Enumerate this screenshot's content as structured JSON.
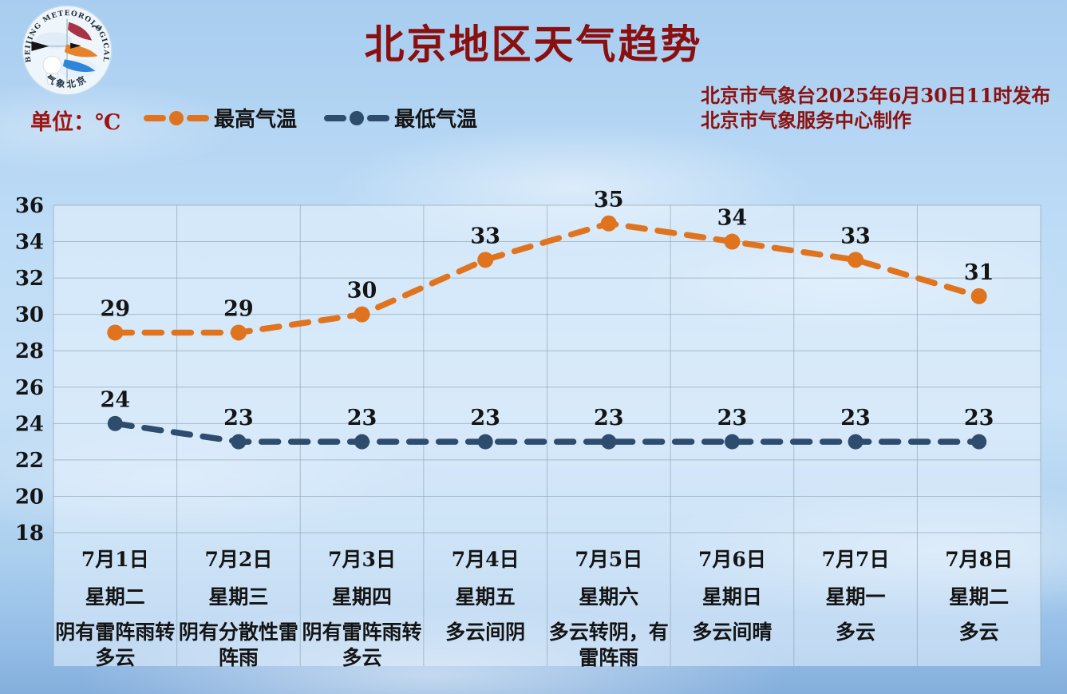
{
  "header": {
    "title": "北京地区天气趋势",
    "unit_label": "单位：℃",
    "publisher_line1": "北京市气象台2025年6月30日11时发布",
    "publisher_line2": "北京市气象服务中心制作",
    "logo": {
      "arc_text": "BEIJING METEOROLOGICAL SERVICE",
      "bottom_text": "气象北京"
    }
  },
  "colors": {
    "title_red": "#8a1010",
    "high_orange": "#E0741E",
    "low_navy": "#2E4D6E",
    "grid": "#8fa3b0",
    "label_black": "#141414"
  },
  "chart_data": {
    "type": "line",
    "title": "北京地区天气趋势",
    "unit": "℃",
    "ylim": [
      18,
      36
    ],
    "yticks": [
      18,
      20,
      22,
      24,
      26,
      28,
      30,
      32,
      34,
      36
    ],
    "grid": true,
    "legend_position": "top-left",
    "categories": [
      {
        "date": "7月1日",
        "weekday": "星期二",
        "weather": "阴有雷阵雨转多云",
        "weather_lines": [
          "阴有雷阵雨转",
          "多云"
        ]
      },
      {
        "date": "7月2日",
        "weekday": "星期三",
        "weather": "阴有分散性雷阵雨",
        "weather_lines": [
          "阴有分散性雷",
          "阵雨"
        ]
      },
      {
        "date": "7月3日",
        "weekday": "星期四",
        "weather": "阴有雷阵雨转多云",
        "weather_lines": [
          "阴有雷阵雨转",
          "多云"
        ]
      },
      {
        "date": "7月4日",
        "weekday": "星期五",
        "weather": "多云间阴",
        "weather_lines": [
          "多云间阴"
        ]
      },
      {
        "date": "7月5日",
        "weekday": "星期六",
        "weather": "多云转阴，有雷阵雨",
        "weather_lines": [
          "多云转阴，有",
          "雷阵雨"
        ]
      },
      {
        "date": "7月6日",
        "weekday": "星期日",
        "weather": "多云间晴",
        "weather_lines": [
          "多云间晴"
        ]
      },
      {
        "date": "7月7日",
        "weekday": "星期一",
        "weather": "多云",
        "weather_lines": [
          "多云"
        ]
      },
      {
        "date": "7月8日",
        "weekday": "星期二",
        "weather": "多云",
        "weather_lines": [
          "多云"
        ]
      }
    ],
    "series": [
      {
        "name": "最高气温",
        "color": "#E0741E",
        "values": [
          29,
          29,
          30,
          33,
          35,
          34,
          33,
          31
        ]
      },
      {
        "name": "最低气温",
        "color": "#2E4D6E",
        "values": [
          24,
          23,
          23,
          23,
          23,
          23,
          23,
          23
        ]
      }
    ]
  }
}
